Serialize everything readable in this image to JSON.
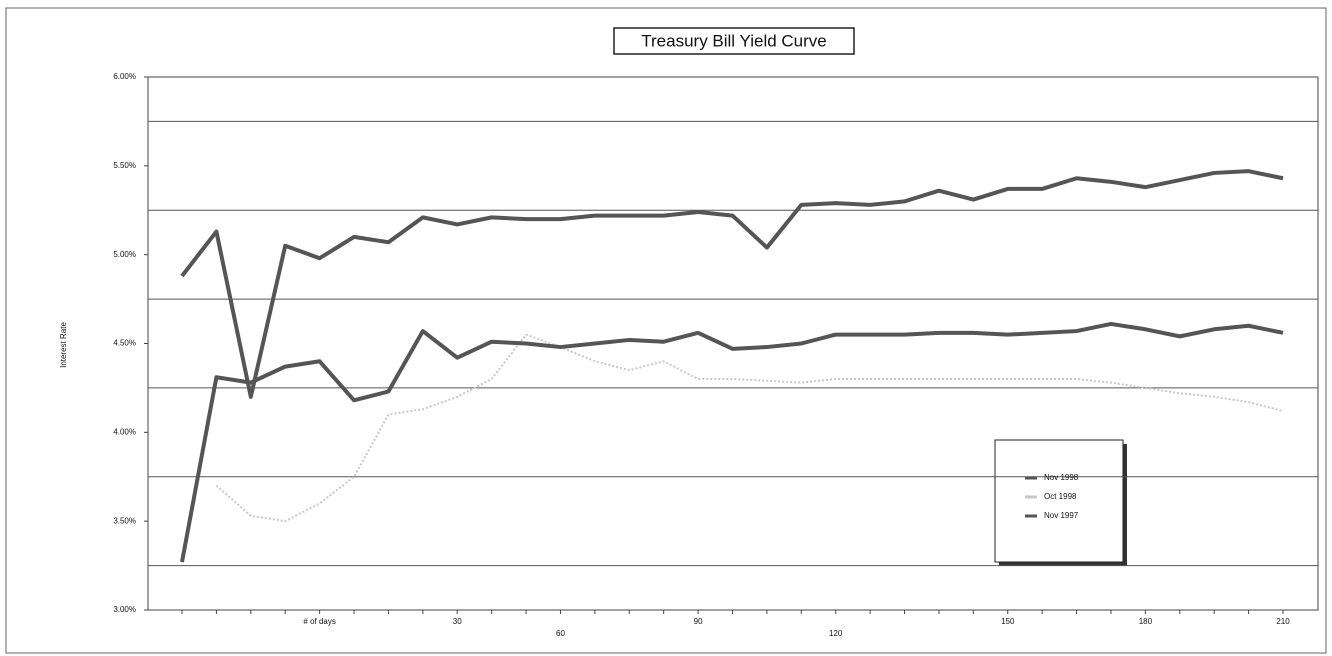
{
  "chart_data": {
    "type": "line",
    "title": "Treasury Bill Yield Curve",
    "y_label": "Interest Rate",
    "categories": [
      null,
      null,
      null,
      null,
      "# of days",
      null,
      null,
      null,
      "30",
      null,
      null,
      "60",
      null,
      null,
      null,
      "90",
      null,
      null,
      null,
      "120",
      null,
      null,
      null,
      null,
      "150",
      null,
      null,
      null,
      "180",
      null,
      null,
      null,
      "210"
    ],
    "series": [
      {
        "name": "Nov 1998",
        "color": "#555555",
        "values": [
          4.88,
          5.13,
          4.2,
          5.05,
          4.98,
          5.1,
          5.07,
          5.21,
          5.17,
          5.21,
          5.2,
          5.2,
          5.22,
          5.22,
          5.22,
          5.24,
          5.22,
          5.04,
          5.28,
          5.29,
          5.28,
          5.3,
          5.36,
          5.31,
          5.37,
          5.37,
          5.43,
          5.41,
          5.38,
          5.42,
          5.46,
          5.47,
          5.43
        ]
      },
      {
        "name": "Oct 1998",
        "color": "#c8c8c8",
        "values": [
          null,
          3.7,
          3.53,
          3.5,
          3.6,
          3.75,
          4.1,
          4.13,
          4.2,
          4.3,
          4.55,
          4.48,
          4.4,
          4.35,
          4.4,
          4.3,
          4.3,
          4.29,
          4.28,
          4.3,
          4.3,
          4.3,
          4.3,
          4.3,
          4.3,
          4.3,
          4.3,
          4.28,
          4.25,
          4.22,
          4.2,
          4.17,
          4.12
        ]
      },
      {
        "name": "Nov 1997",
        "color": "#555555",
        "values": [
          3.27,
          4.31,
          4.28,
          4.37,
          4.4,
          4.18,
          4.23,
          4.57,
          4.42,
          4.51,
          4.5,
          4.48,
          4.5,
          4.52,
          4.51,
          4.56,
          4.47,
          4.48,
          4.5,
          4.55,
          4.55,
          4.55,
          4.56,
          4.56,
          4.55,
          4.56,
          4.57,
          4.61,
          4.58,
          4.54,
          4.58,
          4.6,
          4.56
        ]
      }
    ],
    "ylim": [
      3,
      6
    ],
    "yticks": [
      {
        "value": 3,
        "label": "3.00%"
      },
      {
        "value": 3.5,
        "label": "3.50%"
      },
      {
        "value": 4,
        "label": "4.00%"
      },
      {
        "value": 4.5,
        "label": "4.50%"
      },
      {
        "value": 5,
        "label": "5.00%"
      },
      {
        "value": 5.5,
        "label": "5.50%"
      },
      {
        "value": 6,
        "label": "6.00%"
      }
    ],
    "gridlines": [
      3.25,
      3.75,
      4.25,
      4.75,
      5.25,
      5.75
    ],
    "legend": "right"
  }
}
